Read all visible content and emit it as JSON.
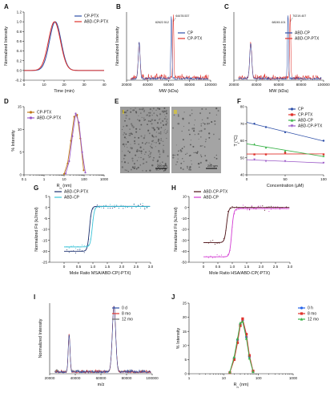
{
  "figure": {
    "panel_letters": [
      "A",
      "B",
      "C",
      "D",
      "E",
      "F",
      "G",
      "H",
      "I",
      "J"
    ],
    "E_panel": {
      "roman_left": "I",
      "roman_right": "II",
      "scalebar_left": "200 nm",
      "scalebar_right": "200 nm"
    }
  },
  "chart_data": [
    {
      "id": "A",
      "type": "line",
      "xlabel": "Time (min)",
      "ylabel": "Normalized Intensity",
      "xlim": [
        0,
        40
      ],
      "ylim": [
        -0.2,
        1.2
      ],
      "xticks": [
        "0",
        "10",
        "20",
        "30",
        "40"
      ],
      "yticks": [
        "-0.2",
        "0.0",
        "0.2",
        "0.4",
        "0.6",
        "0.8",
        "1.0",
        "1.2"
      ],
      "legend_position": "top-right",
      "series": [
        {
          "name": "CP-PTX",
          "color": "#2e4fa8",
          "peak": 15.6,
          "width": 2.9
        },
        {
          "name": "ABD-CP-PTX",
          "color": "#e0322c",
          "peak": 15.2,
          "width": 3.0
        }
      ]
    },
    {
      "id": "B",
      "type": "line",
      "xlabel": "MW (kDa)",
      "ylabel": "Normalized Intensity",
      "xlim": [
        20000,
        100000
      ],
      "xticks": [
        "20000",
        "40000",
        "60000",
        "80000",
        "100000"
      ],
      "legend_position": "right",
      "annotations": [
        "64478.537",
        "62622.512"
      ],
      "series": [
        {
          "name": "CP",
          "color": "#2e4fa8"
        },
        {
          "name": "CP-PTX",
          "color": "#e0322c"
        }
      ]
    },
    {
      "id": "C",
      "type": "line",
      "xlabel": "MW (kDa)",
      "ylabel": "Normalized Intensity",
      "xlim": [
        20000,
        100000
      ],
      "xticks": [
        "20000",
        "40000",
        "60000",
        "80000",
        "100000"
      ],
      "legend_position": "right",
      "annotations": [
        "70219.407",
        "68245.101"
      ],
      "series": [
        {
          "name": "ABD-CP",
          "color": "#2e4fa8"
        },
        {
          "name": "ABD-CP-PTX",
          "color": "#e0322c"
        }
      ]
    },
    {
      "id": "D",
      "type": "line",
      "xscale": "log",
      "xlabel": "R",
      "xlabel_sub": "h",
      "xlabel_unit": " (nm)",
      "ylabel": "% Intensity",
      "xlim": [
        0.1,
        1000
      ],
      "ylim": [
        0,
        15
      ],
      "xticks": [
        "0.1",
        "1",
        "10",
        "100",
        "1000"
      ],
      "yticks": [
        "0",
        "5",
        "10",
        "15"
      ],
      "legend_position": "top-left",
      "series": [
        {
          "name": "CP-PTX",
          "color": "#c07a1a",
          "marker": "circle",
          "x": [
            10,
            15,
            22,
            32,
            45,
            65,
            95
          ],
          "y": [
            0.2,
            2.5,
            7.5,
            12.8,
            13.2,
            8.0,
            1.0
          ]
        },
        {
          "name": "ABD-CP-PTX",
          "color": "#9b59c7",
          "marker": "circle",
          "x": [
            12,
            18,
            26,
            38,
            55,
            80,
            115
          ],
          "y": [
            0.3,
            3.0,
            8.5,
            13.5,
            11.5,
            5.0,
            0.5
          ]
        }
      ]
    },
    {
      "id": "F",
      "type": "scatter",
      "xlabel": "Concentration (μM)",
      "ylabel": "T",
      "ylabel_sub": "t",
      "ylabel_unit": "(°C)",
      "xlim": [
        0,
        100
      ],
      "ylim": [
        40,
        80
      ],
      "xticks": [
        "0",
        "50",
        "100"
      ],
      "yticks": [
        "40",
        "50",
        "60",
        "70",
        "80"
      ],
      "legend_position": "top-right",
      "series": [
        {
          "name": "CP",
          "color": "#2e4fa8",
          "marker": "circle",
          "x": [
            10,
            25,
            50,
            100
          ],
          "y": [
            70,
            68,
            65,
            60
          ]
        },
        {
          "name": "CP-PTX",
          "color": "#e0322c",
          "marker": "square",
          "x": [
            10,
            25,
            50,
            100
          ],
          "y": [
            52,
            52,
            53,
            52
          ]
        },
        {
          "name": "ABD-CP",
          "color": "#3cb44b",
          "marker": "triangle",
          "x": [
            10,
            25,
            50,
            100
          ],
          "y": [
            58,
            56,
            54,
            51
          ]
        },
        {
          "name": "ABD-CP-PTX",
          "color": "#9b59c7",
          "marker": "triangle-down",
          "x": [
            10,
            25,
            50,
            100
          ],
          "y": [
            49,
            48,
            48,
            47
          ]
        }
      ]
    },
    {
      "id": "G",
      "type": "scatter",
      "xlabel": "Mole Ratio MSA/ABD-CP(-PTX)",
      "ylabel": "Normalized Fit (kJ/mol)",
      "xlim": [
        -0.5,
        3.0
      ],
      "ylim": [
        -25,
        5
      ],
      "xticks": [
        "0",
        "0.5",
        "1.0",
        "1.5",
        "2.0",
        "2.5",
        "3.0"
      ],
      "yticks": [
        "-25",
        "-20",
        "-15",
        "-10",
        "-5",
        "0",
        "5"
      ],
      "legend_position": "top-left",
      "series": [
        {
          "name": "ABD-CP-PTX",
          "color": "#1a2f6e",
          "low": -20,
          "high": 0.5,
          "midpoint": 0.88
        },
        {
          "name": "ABD-CP",
          "color": "#3bc4d8",
          "low": -18,
          "high": 0.4,
          "midpoint": 0.98
        }
      ]
    },
    {
      "id": "H",
      "type": "scatter",
      "xlabel": "Mole Ratio HSA/ABD-CP(-PTX)",
      "ylabel": "Normalized Fit (kJ/mol)",
      "xlim": [
        -0.5,
        3.0
      ],
      "ylim": [
        -50,
        10
      ],
      "xticks": [
        "0",
        "0.5",
        "1.0",
        "1.5",
        "2.0",
        "2.5",
        "3.0"
      ],
      "yticks": [
        "-50",
        "-40",
        "-30",
        "-20",
        "-10",
        "0",
        "10"
      ],
      "legend_position": "top-left",
      "series": [
        {
          "name": "ABD-CP-PTX",
          "color": "#4a0d12",
          "low": -32,
          "high": 0,
          "midpoint": 0.8
        },
        {
          "name": "ABD-CP",
          "color": "#d23ad2",
          "low": -45,
          "high": -1,
          "midpoint": 0.98
        }
      ]
    },
    {
      "id": "I",
      "type": "line",
      "xlabel": "m/z",
      "ylabel": "Normalized Intensity",
      "xlim": [
        20000,
        100000
      ],
      "xticks": [
        "20000",
        "40000",
        "60000",
        "80000",
        "100000"
      ],
      "legend_position": "top-right",
      "series": [
        {
          "name": "0 d",
          "color": "#2e4fa8"
        },
        {
          "name": "8 mo",
          "color": "#e0322c"
        },
        {
          "name": "12 mo",
          "color": "#6a6a6a"
        }
      ]
    },
    {
      "id": "J",
      "type": "line",
      "xscale": "log",
      "xlabel": "R",
      "xlabel_sub": "h",
      "xlabel_unit": " (nm)",
      "ylabel": "% Intensity",
      "xlim": [
        1,
        1000
      ],
      "ylim": [
        0,
        25
      ],
      "xticks": [
        "1",
        "10",
        "100",
        "1000"
      ],
      "yticks": [
        "0",
        "5",
        "10",
        "15",
        "20",
        "25"
      ],
      "legend_position": "top-right",
      "series": [
        {
          "name": "0 h",
          "color": "#2563eb",
          "marker": "circle",
          "x": [
            15,
            20,
            25,
            30,
            35,
            45,
            55,
            70
          ],
          "y": [
            0.5,
            5.5,
            12,
            17.5,
            19,
            13,
            6,
            0.8
          ]
        },
        {
          "name": "8 mo",
          "color": "#e0322c",
          "marker": "square",
          "x": [
            15,
            20,
            25,
            30,
            35,
            45,
            55,
            70
          ],
          "y": [
            0.4,
            5,
            11,
            17,
            19.5,
            14,
            6.5,
            1
          ]
        },
        {
          "name": "12 mo",
          "color": "#3cb44b",
          "marker": "triangle",
          "x": [
            15,
            20,
            25,
            30,
            35,
            45,
            55,
            70
          ],
          "y": [
            0.6,
            6,
            12.5,
            18,
            18.5,
            12.5,
            5.5,
            0.7
          ]
        }
      ]
    }
  ]
}
